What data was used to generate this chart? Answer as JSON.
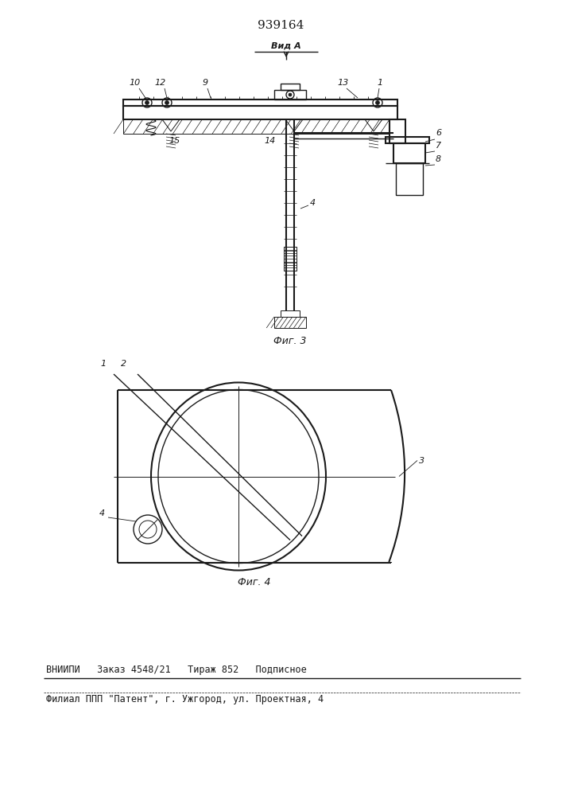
{
  "title": "939164",
  "fig3_label": "Фиг. 3",
  "fig4_label": "Фиг. 4",
  "vid_label": "Вид A",
  "footer_line1": "ВНИИПИ   Заказ 4548/21   Тираж 852   Подписное",
  "footer_line2": "Филиал ППП \"Патент\", г. Ужгород, ул. Проектная, 4",
  "bg_color": "#ffffff",
  "line_color": "#1a1a1a"
}
